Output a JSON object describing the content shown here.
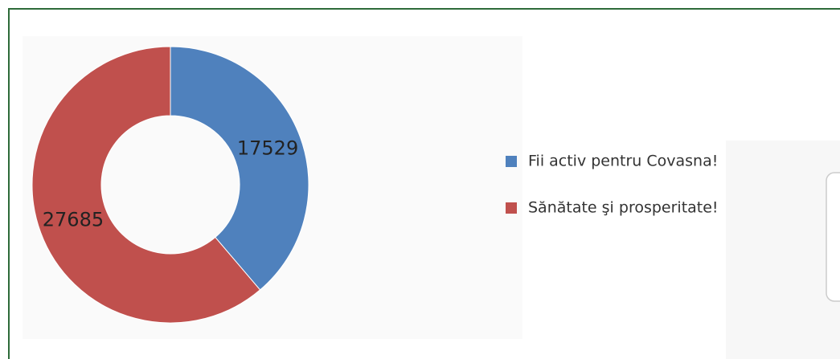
{
  "chart_data": {
    "type": "pie",
    "donut": true,
    "categories": [
      "Fii activ pentru Covasna!",
      "Sănătate şi prosperitate!"
    ],
    "values": [
      17529,
      27685
    ],
    "colors": [
      "#4f81bd",
      "#c0504d"
    ],
    "legend": "right"
  }
}
